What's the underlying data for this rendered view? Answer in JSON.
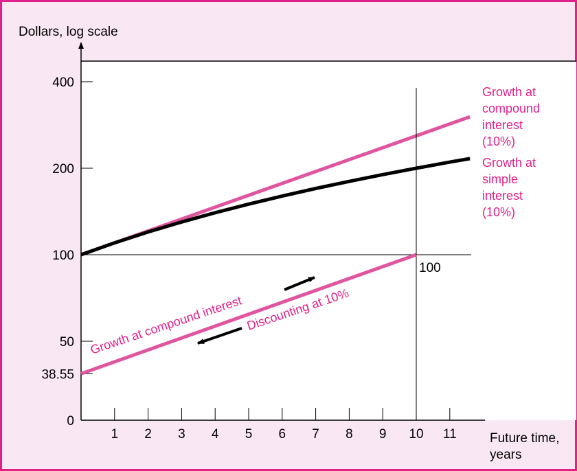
{
  "chart_data": {
    "type": "line",
    "ylabel": "Dollars, log scale",
    "xlabel_line1": "Future time,",
    "xlabel_line2": "years",
    "x_ticks": [
      1,
      2,
      3,
      4,
      5,
      6,
      7,
      8,
      9,
      10,
      11
    ],
    "y_ticks": [
      {
        "value": 400,
        "label": "400"
      },
      {
        "value": 200,
        "label": "200"
      },
      {
        "value": 100,
        "label": "100"
      },
      {
        "value": 50,
        "label": "50"
      },
      {
        "value": 38.55,
        "label": "38.55"
      },
      {
        "value": 0,
        "label": "0"
      }
    ],
    "y_scale": "log",
    "xlim": [
      0,
      11.6
    ],
    "series": [
      {
        "key": "compound",
        "label_lines": [
          "Growth at",
          "compound",
          "interest",
          "(10%)"
        ],
        "color": "#e0559f",
        "x": [
          0,
          11.6
        ],
        "y": [
          100,
          302
        ]
      },
      {
        "key": "simple",
        "label_lines": [
          "Growth at",
          "simple",
          "interest",
          "(10%)"
        ],
        "color": "#000000",
        "x": [
          0,
          1,
          2,
          3,
          4,
          5,
          6,
          7,
          8,
          9,
          10,
          11,
          11.6
        ],
        "y": [
          100,
          110,
          120,
          130,
          140,
          150,
          160,
          170,
          180,
          190,
          200,
          210,
          216
        ]
      },
      {
        "key": "discount",
        "label_lines": [
          "Growth at compound interest"
        ],
        "color": "#e0559f",
        "x": [
          0,
          10
        ],
        "y": [
          38.55,
          100
        ]
      }
    ],
    "annotations": {
      "end_value_label": "100",
      "discount_label": "Discounting at 10%",
      "growth_label": "Growth at compound interest"
    },
    "colors": {
      "accent": "#e0218a",
      "pink_line": "#e0559f",
      "background": "#f9e8f3"
    }
  }
}
